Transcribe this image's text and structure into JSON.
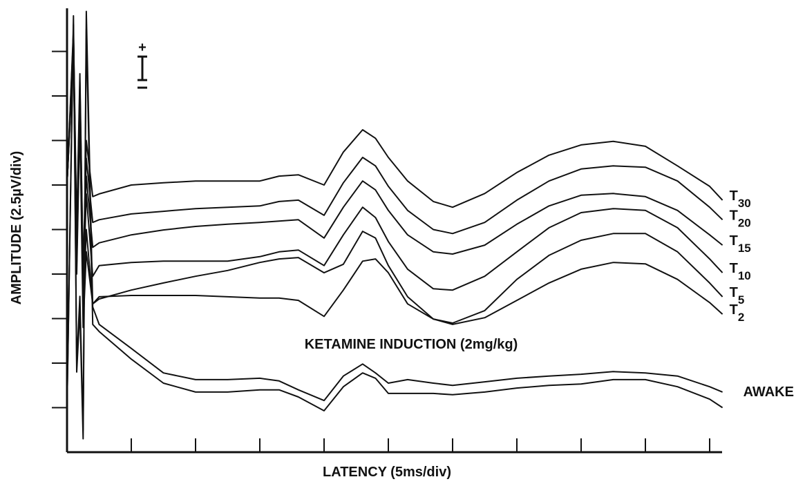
{
  "chart_data": {
    "type": "line",
    "xlabel": "LATENCY (5ms/div)",
    "ylabel": "AMPLITUDE (2.5µV/div)",
    "annotation": "KETAMINE INDUCTION (2mg/kg)",
    "scale_bar_label": "+",
    "xlim": [
      0,
      10.2
    ],
    "ylim": [
      0,
      10
    ],
    "xticks": [
      1,
      2,
      3,
      4,
      5,
      6,
      7,
      8,
      9,
      10
    ],
    "yticks": [
      1,
      2,
      3,
      4,
      5,
      6,
      7,
      8,
      9
    ],
    "color": "#111111",
    "x": [
      0,
      0.1,
      0.15,
      0.2,
      0.25,
      0.3,
      0.4,
      0.5,
      1,
      1.5,
      2,
      2.5,
      3,
      3.3,
      3.6,
      4,
      4.3,
      4.6,
      4.8,
      5,
      5.3,
      5.7,
      6,
      6.5,
      7,
      7.5,
      8,
      8.5,
      9,
      9.5,
      10,
      10.2
    ],
    "series": [
      {
        "name": "T30",
        "values": [
          6,
          9.5,
          5,
          8.5,
          4,
          7,
          5.74,
          5.8,
          6.0,
          6.05,
          6.09,
          6.09,
          6.09,
          6.2,
          6.23,
          6.0,
          6.74,
          7.24,
          7.05,
          6.62,
          6.09,
          5.63,
          5.5,
          5.81,
          6.28,
          6.67,
          6.9,
          6.98,
          6.87,
          6.43,
          5.97,
          5.66
        ]
      },
      {
        "name": "T20",
        "values": [
          6,
          9.4,
          4.8,
          8.3,
          4,
          6.6,
          5.16,
          5.22,
          5.35,
          5.41,
          5.47,
          5.5,
          5.53,
          5.63,
          5.66,
          5.32,
          6.05,
          6.62,
          6.43,
          5.97,
          5.43,
          5.0,
          4.91,
          5.16,
          5.66,
          6.09,
          6.36,
          6.43,
          6.4,
          6.09,
          5.5,
          5.22
        ]
      },
      {
        "name": "T15",
        "values": [
          6,
          9.3,
          4.6,
          8.1,
          3.8,
          6.2,
          4.6,
          4.7,
          4.88,
          4.99,
          5.07,
          5.12,
          5.16,
          5.19,
          5.22,
          4.81,
          5.5,
          6.09,
          5.89,
          5.43,
          4.88,
          4.5,
          4.45,
          4.65,
          5.12,
          5.53,
          5.77,
          5.81,
          5.74,
          5.43,
          4.88,
          4.65
        ]
      },
      {
        "name": "T10",
        "values": [
          6,
          9.2,
          4.4,
          7.9,
          3.6,
          5.8,
          3.95,
          4.19,
          4.26,
          4.29,
          4.29,
          4.29,
          4.39,
          4.5,
          4.54,
          4.19,
          4.88,
          5.5,
          5.27,
          4.73,
          4.11,
          3.67,
          3.64,
          3.95,
          4.5,
          5.04,
          5.38,
          5.47,
          5.43,
          5.04,
          4.34,
          4.03
        ]
      },
      {
        "name": "T5",
        "values": [
          6,
          9.1,
          4.2,
          7.7,
          3.2,
          5.0,
          3.33,
          3.44,
          3.64,
          3.8,
          3.95,
          4.08,
          4.26,
          4.34,
          4.37,
          4.03,
          4.22,
          4.96,
          4.81,
          4.19,
          3.49,
          2.99,
          2.9,
          3.18,
          3.88,
          4.42,
          4.76,
          4.91,
          4.91,
          4.5,
          3.8,
          3.49
        ]
      },
      {
        "name": "T2",
        "values": [
          6,
          9.0,
          4.0,
          7.5,
          2.8,
          4.5,
          3.33,
          3.49,
          3.52,
          3.52,
          3.52,
          3.49,
          3.46,
          3.46,
          3.41,
          3.05,
          3.64,
          4.29,
          4.34,
          4.03,
          3.33,
          2.99,
          2.87,
          3.02,
          3.41,
          3.8,
          4.11,
          4.26,
          4.23,
          3.88,
          3.36,
          3.1
        ]
      },
      {
        "name": "AWAKE",
        "values": [
          1.0,
          9.8,
          2,
          3.5,
          0.5,
          9.9,
          3.26,
          2.87,
          2.33,
          1.78,
          1.63,
          1.63,
          1.66,
          1.6,
          1.4,
          1.16,
          1.71,
          1.98,
          1.78,
          1.55,
          1.63,
          1.55,
          1.5,
          1.58,
          1.66,
          1.71,
          1.75,
          1.81,
          1.78,
          1.71,
          1.47,
          1.35
        ]
      },
      {
        "values": [
          1.0,
          9.6,
          1.8,
          3.2,
          0.3,
          9.5,
          2.87,
          2.71,
          2.09,
          1.55,
          1.35,
          1.35,
          1.4,
          1.4,
          1.24,
          0.93,
          1.47,
          1.78,
          1.66,
          1.32,
          1.32,
          1.32,
          1.29,
          1.35,
          1.44,
          1.5,
          1.53,
          1.63,
          1.63,
          1.47,
          1.19,
          1.0
        ]
      }
    ]
  }
}
